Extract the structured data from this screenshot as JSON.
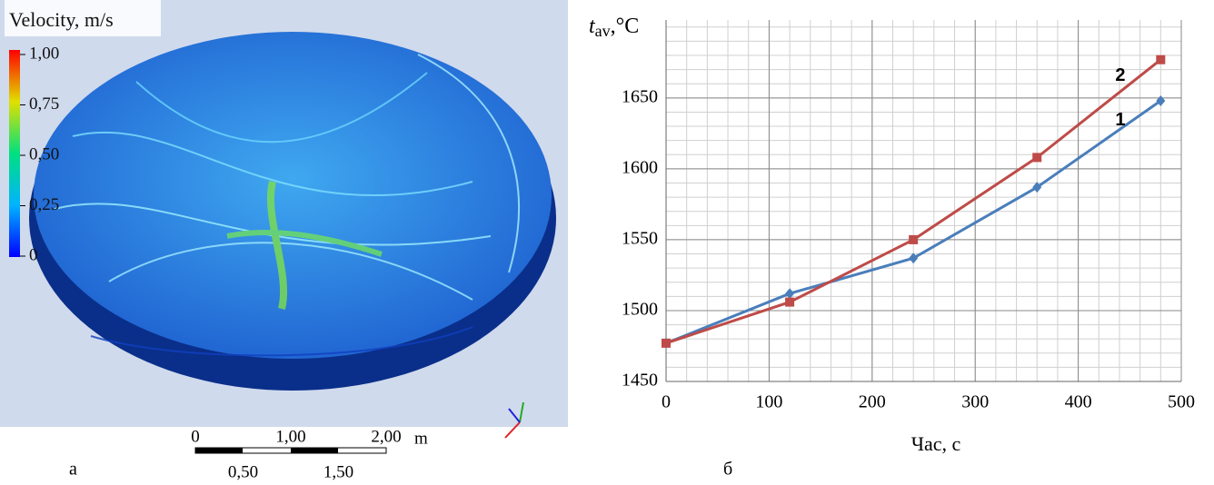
{
  "panel_a": {
    "legend_title": "Velocity,  m/s",
    "colorbar_ticks": [
      {
        "value": 1,
        "label": "1,00"
      },
      {
        "value": 0.75,
        "label": "0,75"
      },
      {
        "value": 0.5,
        "label": "0,50"
      },
      {
        "value": 0.25,
        "label": "0,25"
      },
      {
        "value": 0,
        "label": "0"
      }
    ],
    "scale_top": [
      {
        "value": 0,
        "label": "0"
      },
      {
        "value": 1,
        "label": "1,00"
      },
      {
        "value": 2,
        "label": "2,00"
      }
    ],
    "scale_bottom": [
      {
        "value": 0.5,
        "label": "0,50"
      },
      {
        "value": 1.5,
        "label": "1,50"
      }
    ],
    "scale_unit": "m",
    "label": "а"
  },
  "chart_data": {
    "type": "line",
    "y_label": {
      "symbol": "t",
      "subscript": "av",
      "unit": ",°C"
    },
    "x_label": "Час, с",
    "panel_label": "б",
    "x": [
      0,
      120,
      240,
      360,
      480
    ],
    "series": [
      {
        "name": "1",
        "color": "#4a7ebb",
        "marker": "diamond",
        "values": [
          1477,
          1512,
          1537,
          1587,
          1648
        ]
      },
      {
        "name": "2",
        "color": "#be4b48",
        "marker": "square",
        "values": [
          1477,
          1506,
          1550,
          1608,
          1677
        ]
      }
    ],
    "xlim": [
      0,
      500
    ],
    "xticks": [
      0,
      100,
      200,
      300,
      400,
      500
    ],
    "ylim": [
      1450,
      1705
    ],
    "yticks": [
      1450,
      1500,
      1550,
      1600,
      1650
    ],
    "grid": true,
    "minor_xstep": 20,
    "minor_ystep": 10
  }
}
